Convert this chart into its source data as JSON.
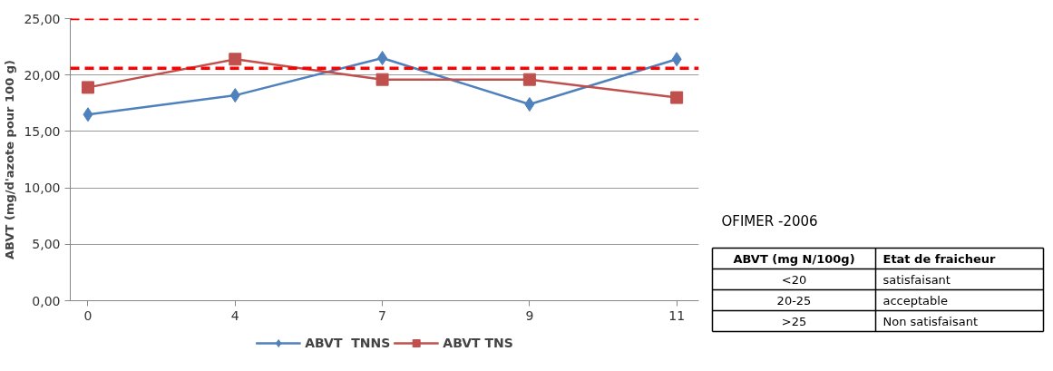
{
  "chart_data": [
    {
      "type": "line",
      "ylabel": "ABVT (mg/d'azote pour 100 g)",
      "categories": [
        "0",
        "4",
        "7",
        "9",
        "11"
      ],
      "series": [
        {
          "name": "ABVT  TNNS",
          "color": "#4f81bd",
          "values": [
            16.5,
            18.2,
            21.5,
            17.4,
            21.4
          ],
          "marker": "diamond"
        },
        {
          "name": "ABVT TNS",
          "color": "#c0504d",
          "values": [
            18.9,
            21.4,
            19.6,
            19.6,
            18.0
          ],
          "marker": "square"
        }
      ],
      "ylim": [
        0,
        25
      ],
      "yticks": [
        {
          "value": 0,
          "label": "0,00"
        },
        {
          "value": 5,
          "label": "5,00"
        },
        {
          "value": 10,
          "label": "10,00"
        },
        {
          "value": 15,
          "label": "15,00"
        },
        {
          "value": 20,
          "label": "20,00"
        },
        {
          "value": 25,
          "label": "25,00"
        }
      ],
      "grid": "y",
      "legend": "bottom",
      "line_style": "solid",
      "ref_lines": [
        {
          "axis": "y",
          "value": 25,
          "color": "#ff0000",
          "line_style": "dashed"
        },
        {
          "axis": "y",
          "value": 20.6,
          "color": "#ff0000",
          "line_style": "dashed"
        }
      ]
    },
    {
      "type": "other",
      "title": "OFIMER -2006",
      "annotations": [
        "ABVT (mg N/100g)",
        "Etat de fraicheur",
        "<20",
        "satisfaisant",
        "20-25",
        "acceptable",
        ">25",
        "Non satisfaisant"
      ]
    }
  ]
}
